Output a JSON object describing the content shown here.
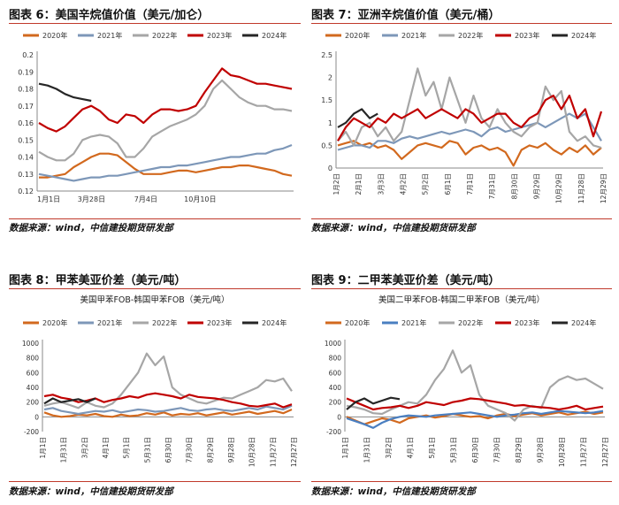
{
  "panels": [
    {
      "title": "图表 6：美国辛烷值价值（美元/加仑）",
      "source": "数据来源：wind，中信建投期货研发部",
      "chart_data": {
        "type": "line",
        "title": "",
        "subtitle": "",
        "xlabel": "",
        "ylabel": "",
        "ylim": [
          0.12,
          0.2
        ],
        "yticks": [
          "0.2",
          "0.19",
          "0.18",
          "0.17",
          "0.16",
          "0.15",
          "0.14",
          "0.13",
          "0.12"
        ],
        "xticks": [
          "1月1日",
          "3月28日",
          "7月4日",
          "10月10日"
        ],
        "grid": false,
        "legend": "top",
        "series": [
          {
            "name": "2020年",
            "color": "#d2691e",
            "values": [
              0.128,
              0.128,
              0.129,
              0.13,
              0.134,
              0.137,
              0.14,
              0.142,
              0.142,
              0.141,
              0.137,
              0.133,
              0.13,
              0.13,
              0.13,
              0.131,
              0.132,
              0.132,
              0.131,
              0.132,
              0.133,
              0.134,
              0.134,
              0.135,
              0.135,
              0.134,
              0.133,
              0.132,
              0.13,
              0.129
            ]
          },
          {
            "name": "2021年",
            "color": "#7d97b8",
            "values": [
              0.13,
              0.129,
              0.128,
              0.127,
              0.126,
              0.127,
              0.128,
              0.128,
              0.129,
              0.129,
              0.13,
              0.131,
              0.132,
              0.133,
              0.134,
              0.134,
              0.135,
              0.135,
              0.136,
              0.137,
              0.138,
              0.139,
              0.14,
              0.14,
              0.141,
              0.142,
              0.142,
              0.144,
              0.145,
              0.147
            ]
          },
          {
            "name": "2022年",
            "color": "#a6a6a6",
            "values": [
              0.143,
              0.14,
              0.138,
              0.138,
              0.142,
              0.15,
              0.152,
              0.153,
              0.152,
              0.148,
              0.14,
              0.14,
              0.145,
              0.152,
              0.155,
              0.158,
              0.16,
              0.162,
              0.165,
              0.17,
              0.18,
              0.185,
              0.18,
              0.175,
              0.172,
              0.17,
              0.17,
              0.168,
              0.168,
              0.167
            ]
          },
          {
            "name": "2023年",
            "color": "#c00000",
            "values": [
              0.16,
              0.157,
              0.155,
              0.158,
              0.163,
              0.168,
              0.17,
              0.167,
              0.162,
              0.16,
              0.165,
              0.164,
              0.16,
              0.165,
              0.168,
              0.168,
              0.167,
              0.168,
              0.17,
              0.178,
              0.185,
              0.192,
              0.188,
              0.187,
              0.185,
              0.183,
              0.183,
              0.182,
              0.181,
              0.18
            ]
          },
          {
            "name": "2024年",
            "color": "#262626",
            "values": [
              0.183,
              0.182,
              0.18,
              0.177,
              0.175,
              0.174,
              0.173
            ]
          }
        ]
      }
    },
    {
      "title": "图表 7：亚洲辛烷值价值（美元/桶）",
      "source": "数据来源：wind，中信建投期货研发部",
      "chart_data": {
        "type": "line",
        "title": "",
        "xlabel": "",
        "ylabel": "",
        "ylim": [
          0,
          2.5
        ],
        "yticks": [
          "2.5",
          "2",
          "1.5",
          "1",
          "0.5",
          "0"
        ],
        "xticks": [
          "1月2日",
          "2月1日",
          "3月3日",
          "4月2日",
          "5月2日",
          "6月1日",
          "7月1日",
          "7月31日",
          "8月30日",
          "9月29日",
          "10月29日",
          "11月28日",
          "12月29日"
        ],
        "grid": false,
        "legend": "top",
        "series": [
          {
            "name": "2020年",
            "color": "#d2691e",
            "values": [
              0.5,
              0.55,
              0.6,
              0.5,
              0.55,
              0.45,
              0.5,
              0.4,
              0.2,
              0.35,
              0.5,
              0.55,
              0.5,
              0.45,
              0.6,
              0.55,
              0.3,
              0.45,
              0.5,
              0.4,
              0.45,
              0.35,
              0.05,
              0.4,
              0.5,
              0.45,
              0.55,
              0.4,
              0.3,
              0.45,
              0.35,
              0.5,
              0.3,
              0.45
            ]
          },
          {
            "name": "2021年",
            "color": "#7d97b8",
            "values": [
              0.4,
              0.45,
              0.5,
              0.5,
              0.45,
              0.6,
              0.6,
              0.55,
              0.65,
              0.7,
              0.65,
              0.7,
              0.75,
              0.8,
              0.75,
              0.8,
              0.85,
              0.8,
              0.7,
              0.85,
              0.9,
              0.8,
              0.85,
              0.9,
              0.95,
              1.0,
              0.9,
              1.0,
              1.1,
              1.2,
              1.1,
              1.2,
              0.9,
              0.6
            ]
          },
          {
            "name": "2022年",
            "color": "#a6a6a6",
            "values": [
              0.6,
              0.8,
              0.5,
              0.9,
              1.0,
              0.7,
              0.9,
              0.6,
              0.8,
              1.5,
              2.2,
              1.6,
              1.9,
              1.3,
              2.0,
              1.5,
              1.0,
              1.6,
              1.1,
              0.9,
              1.3,
              1.0,
              0.8,
              0.7,
              0.9,
              1.0,
              1.8,
              1.5,
              1.7,
              0.8,
              0.6,
              0.7,
              0.5,
              0.45
            ]
          },
          {
            "name": "2023年",
            "color": "#c00000",
            "values": [
              0.6,
              0.9,
              1.1,
              1.0,
              0.9,
              1.1,
              1.0,
              1.2,
              1.1,
              1.2,
              1.3,
              1.1,
              1.2,
              1.3,
              1.2,
              1.1,
              1.3,
              1.2,
              1.0,
              1.1,
              1.2,
              1.2,
              1.0,
              0.9,
              1.1,
              1.2,
              1.5,
              1.6,
              1.3,
              1.6,
              1.1,
              1.3,
              0.7,
              1.25
            ]
          },
          {
            "name": "2024年",
            "color": "#262626",
            "values": [
              0.9,
              1.0,
              1.2,
              1.3,
              1.1,
              1.2
            ]
          }
        ]
      }
    },
    {
      "title": "图表 8：甲苯美亚价差（美元/吨）",
      "source": "数据来源：wind，中信建投期货研发部",
      "chart_data": {
        "type": "line",
        "title": "美国甲苯FOB-韩国甲苯FOB（美元/吨）",
        "xlabel": "",
        "ylabel": "",
        "ylim": [
          -200,
          1000
        ],
        "yticks": [
          "1000",
          "800",
          "600",
          "400",
          "200",
          "0",
          "-200"
        ],
        "xticks": [
          "1月1日",
          "1月31日",
          "3月2日",
          "4月1日",
          "5月1日",
          "5月31日",
          "6月30日",
          "7月30日",
          "8月29日",
          "9月28日",
          "10月28日",
          "11月27日",
          "12月27日"
        ],
        "grid": false,
        "legend": "top",
        "series": [
          {
            "name": "2020年",
            "color": "#d2691e",
            "values": [
              60,
              20,
              0,
              10,
              30,
              20,
              40,
              10,
              0,
              30,
              10,
              20,
              50,
              30,
              60,
              20,
              40,
              30,
              50,
              20,
              40,
              60,
              30,
              50,
              70,
              40,
              60,
              80,
              50,
              100
            ]
          },
          {
            "name": "2021年",
            "color": "#7d97b8",
            "values": [
              100,
              120,
              80,
              60,
              40,
              60,
              80,
              70,
              90,
              60,
              80,
              100,
              90,
              70,
              80,
              100,
              120,
              90,
              80,
              100,
              110,
              90,
              80,
              100,
              120,
              100,
              140,
              120,
              100,
              150
            ]
          },
          {
            "name": "2022年",
            "color": "#a6a6a6",
            "values": [
              150,
              180,
              200,
              160,
              120,
              200,
              150,
              130,
              180,
              300,
              450,
              600,
              860,
              700,
              820,
              400,
              300,
              250,
              200,
              180,
              220,
              260,
              250,
              300,
              350,
              400,
              500,
              480,
              520,
              350
            ]
          },
          {
            "name": "2023年",
            "color": "#c00000",
            "values": [
              280,
              300,
              260,
              240,
              200,
              220,
              250,
              200,
              230,
              250,
              280,
              260,
              300,
              320,
              300,
              280,
              250,
              300,
              270,
              260,
              250,
              230,
              200,
              180,
              150,
              140,
              160,
              180,
              130,
              170
            ]
          },
          {
            "name": "2024年",
            "color": "#262626",
            "values": [
              180,
              250,
              200,
              220,
              240,
              200,
              250
            ]
          }
        ]
      }
    },
    {
      "title": "图表 9：二甲苯美亚价差（美元/吨）",
      "source": "数据来源：wind，中信建投期货研发部",
      "chart_data": {
        "type": "line",
        "title": "美国二甲苯FOB-韩国二甲苯FOB（美元/吨）",
        "xlabel": "",
        "ylabel": "",
        "ylim": [
          -200,
          1000
        ],
        "yticks": [
          "1000",
          "800",
          "600",
          "400",
          "200",
          "0",
          "-200"
        ],
        "xticks": [
          "1月1日",
          "1月31日",
          "3月2日",
          "4月1日",
          "5月1日",
          "5月31日",
          "6月30日",
          "7月30日",
          "8月29日",
          "9月28日",
          "10月28日",
          "11月27日",
          "12月27日"
        ],
        "grid": false,
        "legend": "top",
        "series": [
          {
            "name": "2020年",
            "color": "#d2691e",
            "values": [
              0,
              -50,
              -100,
              -60,
              -20,
              -40,
              -80,
              -20,
              0,
              20,
              -10,
              10,
              40,
              20,
              0,
              10,
              -20,
              20,
              40,
              10,
              30,
              50,
              20,
              40,
              60,
              30,
              50,
              70,
              40,
              60
            ]
          },
          {
            "name": "2021年",
            "color": "#4a7fc1",
            "values": [
              -20,
              -60,
              -100,
              -150,
              -80,
              -30,
              0,
              20,
              10,
              0,
              20,
              30,
              40,
              50,
              60,
              40,
              20,
              0,
              20,
              30,
              50,
              60,
              40,
              60,
              80,
              70,
              60,
              50,
              60,
              80
            ]
          },
          {
            "name": "2022年",
            "color": "#a6a6a6",
            "values": [
              150,
              130,
              100,
              50,
              40,
              100,
              150,
              200,
              180,
              300,
              500,
              650,
              900,
              600,
              700,
              300,
              150,
              100,
              50,
              -50,
              100,
              150,
              120,
              400,
              500,
              550,
              500,
              520,
              450,
              380
            ]
          },
          {
            "name": "2023年",
            "color": "#c00000",
            "values": [
              250,
              200,
              150,
              100,
              120,
              130,
              150,
              120,
              150,
              200,
              180,
              160,
              200,
              220,
              250,
              240,
              220,
              200,
              180,
              150,
              160,
              140,
              130,
              120,
              100,
              120,
              150,
              100,
              120,
              140
            ]
          },
          {
            "name": "2024年",
            "color": "#262626",
            "values": [
              100,
              200,
              250,
              180,
              220,
              260,
              240
            ]
          }
        ]
      }
    }
  ]
}
